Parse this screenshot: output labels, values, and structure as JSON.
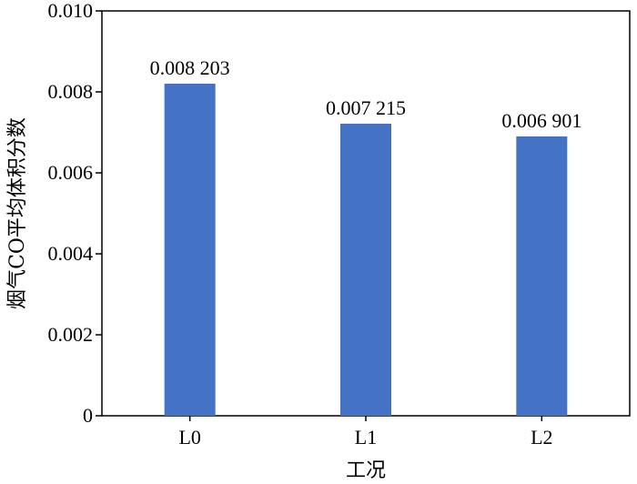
{
  "chart_data": {
    "type": "bar",
    "title": "",
    "xlabel": "工况",
    "ylabel": "烟气CO平均体积分数",
    "categories": [
      "L0",
      "L1",
      "L2"
    ],
    "values": [
      0.008203,
      0.007215,
      0.006901
    ],
    "data_labels": [
      "0.008 203",
      "0.007 215",
      "0.006 901"
    ],
    "ylim": [
      0,
      0.01
    ],
    "yticks": [
      0,
      0.002,
      0.004,
      0.006,
      0.008,
      0.01
    ],
    "ytick_labels": [
      "0",
      "0.002",
      "0.004",
      "0.006",
      "0.008",
      "0.010"
    ],
    "grid": false,
    "legend": "none",
    "colors": {
      "bar": "#4472c4",
      "axis": "#000000"
    }
  }
}
